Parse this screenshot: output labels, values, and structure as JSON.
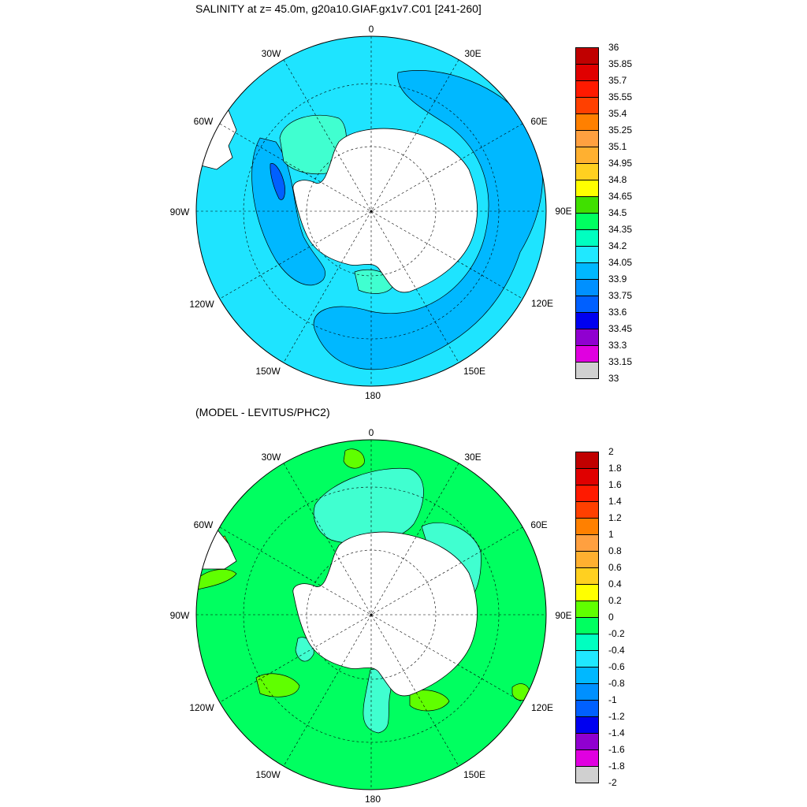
{
  "panels": [
    {
      "title": "SALINITY at z=  45.0m, g20a10.GIAF.gx1v7.C01 [241-260]",
      "colorbar": {
        "labels": [
          "36",
          "35.85",
          "35.7",
          "35.55",
          "35.4",
          "35.25",
          "35.1",
          "34.95",
          "34.8",
          "34.65",
          "34.5",
          "34.35",
          "34.2",
          "34.05",
          "33.9",
          "33.75",
          "33.6",
          "33.45",
          "33.3",
          "33.15",
          "33"
        ],
        "colors": [
          "#c00000",
          "#e00000",
          "#ff1a00",
          "#ff4000",
          "#ff8000",
          "#ffa040",
          "#ffb030",
          "#ffd020",
          "#ffff00",
          "#40e000",
          "#00ff60",
          "#00ffc0",
          "#20e8ff",
          "#00b8ff",
          "#0090ff",
          "#0060ff",
          "#0000f0",
          "#9000d0",
          "#e000e0",
          "#d0d0d0",
          "#707070"
        ]
      }
    },
    {
      "title": "(MODEL - LEVITUS/PHC2)",
      "colorbar": {
        "labels": [
          "2",
          "1.8",
          "1.6",
          "1.4",
          "1.2",
          "1",
          "0.8",
          "0.6",
          "0.4",
          "0.2",
          "0",
          "-0.2",
          "-0.4",
          "-0.6",
          "-0.8",
          "-1",
          "-1.2",
          "-1.4",
          "-1.6",
          "-1.8",
          "-2"
        ],
        "colors": [
          "#c00000",
          "#e00000",
          "#ff1a00",
          "#ff4000",
          "#ff8000",
          "#ffa040",
          "#ffb030",
          "#ffd020",
          "#ffff00",
          "#60ff00",
          "#00ff60",
          "#00ffc0",
          "#20e8ff",
          "#00b8ff",
          "#0090ff",
          "#0060ff",
          "#0000f0",
          "#9000d0",
          "#e000e0",
          "#d0d0d0",
          "#707070"
        ]
      }
    }
  ],
  "lon_labels": [
    "0",
    "30E",
    "60E",
    "90E",
    "120E",
    "150E",
    "180",
    "150W",
    "120W",
    "90W",
    "60W",
    "30W"
  ],
  "fill_colors": {
    "top_main": "#1ee4ff",
    "top_lower": "#00b8ff",
    "top_high": "#40ffd0",
    "top_low": "#0060ff",
    "bottom_main": "#00ff60",
    "bottom_neg": "#40ffd0",
    "bottom_pos": "#60ff00",
    "bottom_hi": "#ffd020",
    "land": "#ffffff"
  }
}
